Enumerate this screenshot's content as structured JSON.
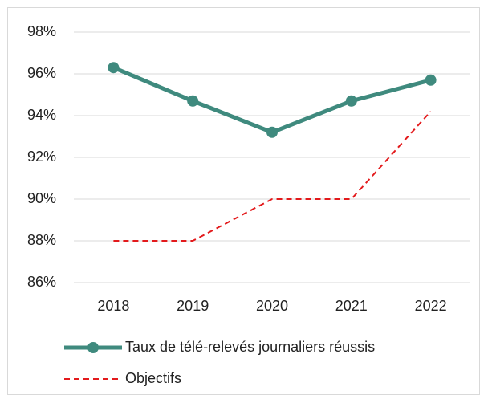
{
  "chart_data": {
    "type": "line",
    "categories": [
      "2018",
      "2019",
      "2020",
      "2021",
      "2022"
    ],
    "series": [
      {
        "name": "Taux de télé-relevés journaliers réussis",
        "color": "#3f8a7e",
        "marker": true,
        "dashed": false,
        "values": [
          96.3,
          94.7,
          93.2,
          94.7,
          95.7
        ]
      },
      {
        "name": "Objectifs",
        "color": "#e31a1c",
        "marker": false,
        "dashed": true,
        "values": [
          88,
          88,
          90,
          90,
          94.2
        ]
      }
    ],
    "ylim": [
      86,
      98
    ],
    "yticks": [
      {
        "value": 86,
        "label": "86%"
      },
      {
        "value": 88,
        "label": "88%"
      },
      {
        "value": 90,
        "label": "90%"
      },
      {
        "value": 92,
        "label": "92%"
      },
      {
        "value": 94,
        "label": "94%"
      },
      {
        "value": 96,
        "label": "96%"
      },
      {
        "value": 98,
        "label": "98%"
      }
    ],
    "grid": true,
    "legend": "bottom"
  }
}
